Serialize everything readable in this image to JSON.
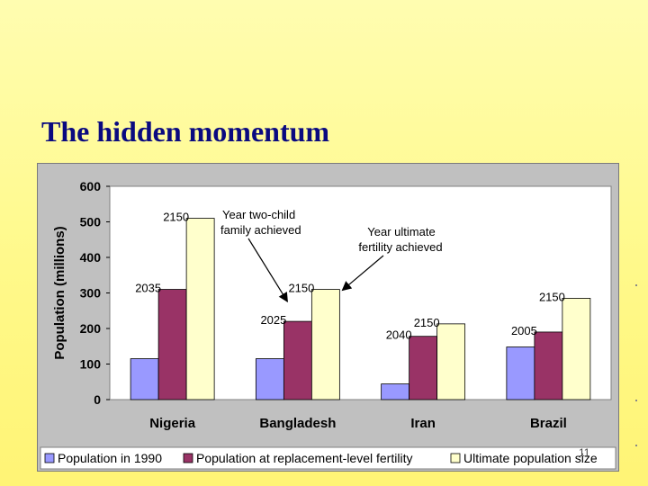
{
  "slide": {
    "title": "The hidden momentum",
    "page_number": "11"
  },
  "chart_data": {
    "type": "bar",
    "title": "",
    "xlabel": "",
    "ylabel": "Population (millions)",
    "ylim": [
      0,
      600
    ],
    "yticks": [
      0,
      100,
      200,
      300,
      400,
      500,
      600
    ],
    "grid": false,
    "legend": "bottom",
    "categories": [
      "Nigeria",
      "Bangladesh",
      "Iran",
      "Brazil"
    ],
    "series": [
      {
        "name": "Population in 1990",
        "color": "#9999ff",
        "values": [
          115,
          115,
          44,
          148
        ]
      },
      {
        "name": "Population at replacement-level fertility",
        "color": "#993366",
        "values": [
          310,
          220,
          178,
          190
        ]
      },
      {
        "name": "Ultimate population size",
        "color": "#ffffcc",
        "values": [
          510,
          310,
          213,
          285
        ]
      }
    ],
    "bar_labels": [
      {
        "category": "Nigeria",
        "series": 1,
        "text": "2035"
      },
      {
        "category": "Nigeria",
        "series": 2,
        "text": "2150"
      },
      {
        "category": "Bangladesh",
        "series": 1,
        "text": "2025"
      },
      {
        "category": "Bangladesh",
        "series": 2,
        "text": "2150"
      },
      {
        "category": "Iran",
        "series": 1,
        "text": "2040"
      },
      {
        "category": "Iran",
        "series": 2,
        "text": "2150"
      },
      {
        "category": "Brazil",
        "series": 1,
        "text": "2005"
      },
      {
        "category": "Brazil",
        "series": 2,
        "text": "2150"
      }
    ],
    "annotations": [
      {
        "lines": [
          "Year two-child",
          "family achieved"
        ],
        "points_to": {
          "category": "Bangladesh",
          "series": 1
        }
      },
      {
        "lines": [
          "Year ultimate",
          "fertility achieved"
        ],
        "points_to": {
          "category": "Bangladesh",
          "series": 2
        }
      }
    ]
  }
}
